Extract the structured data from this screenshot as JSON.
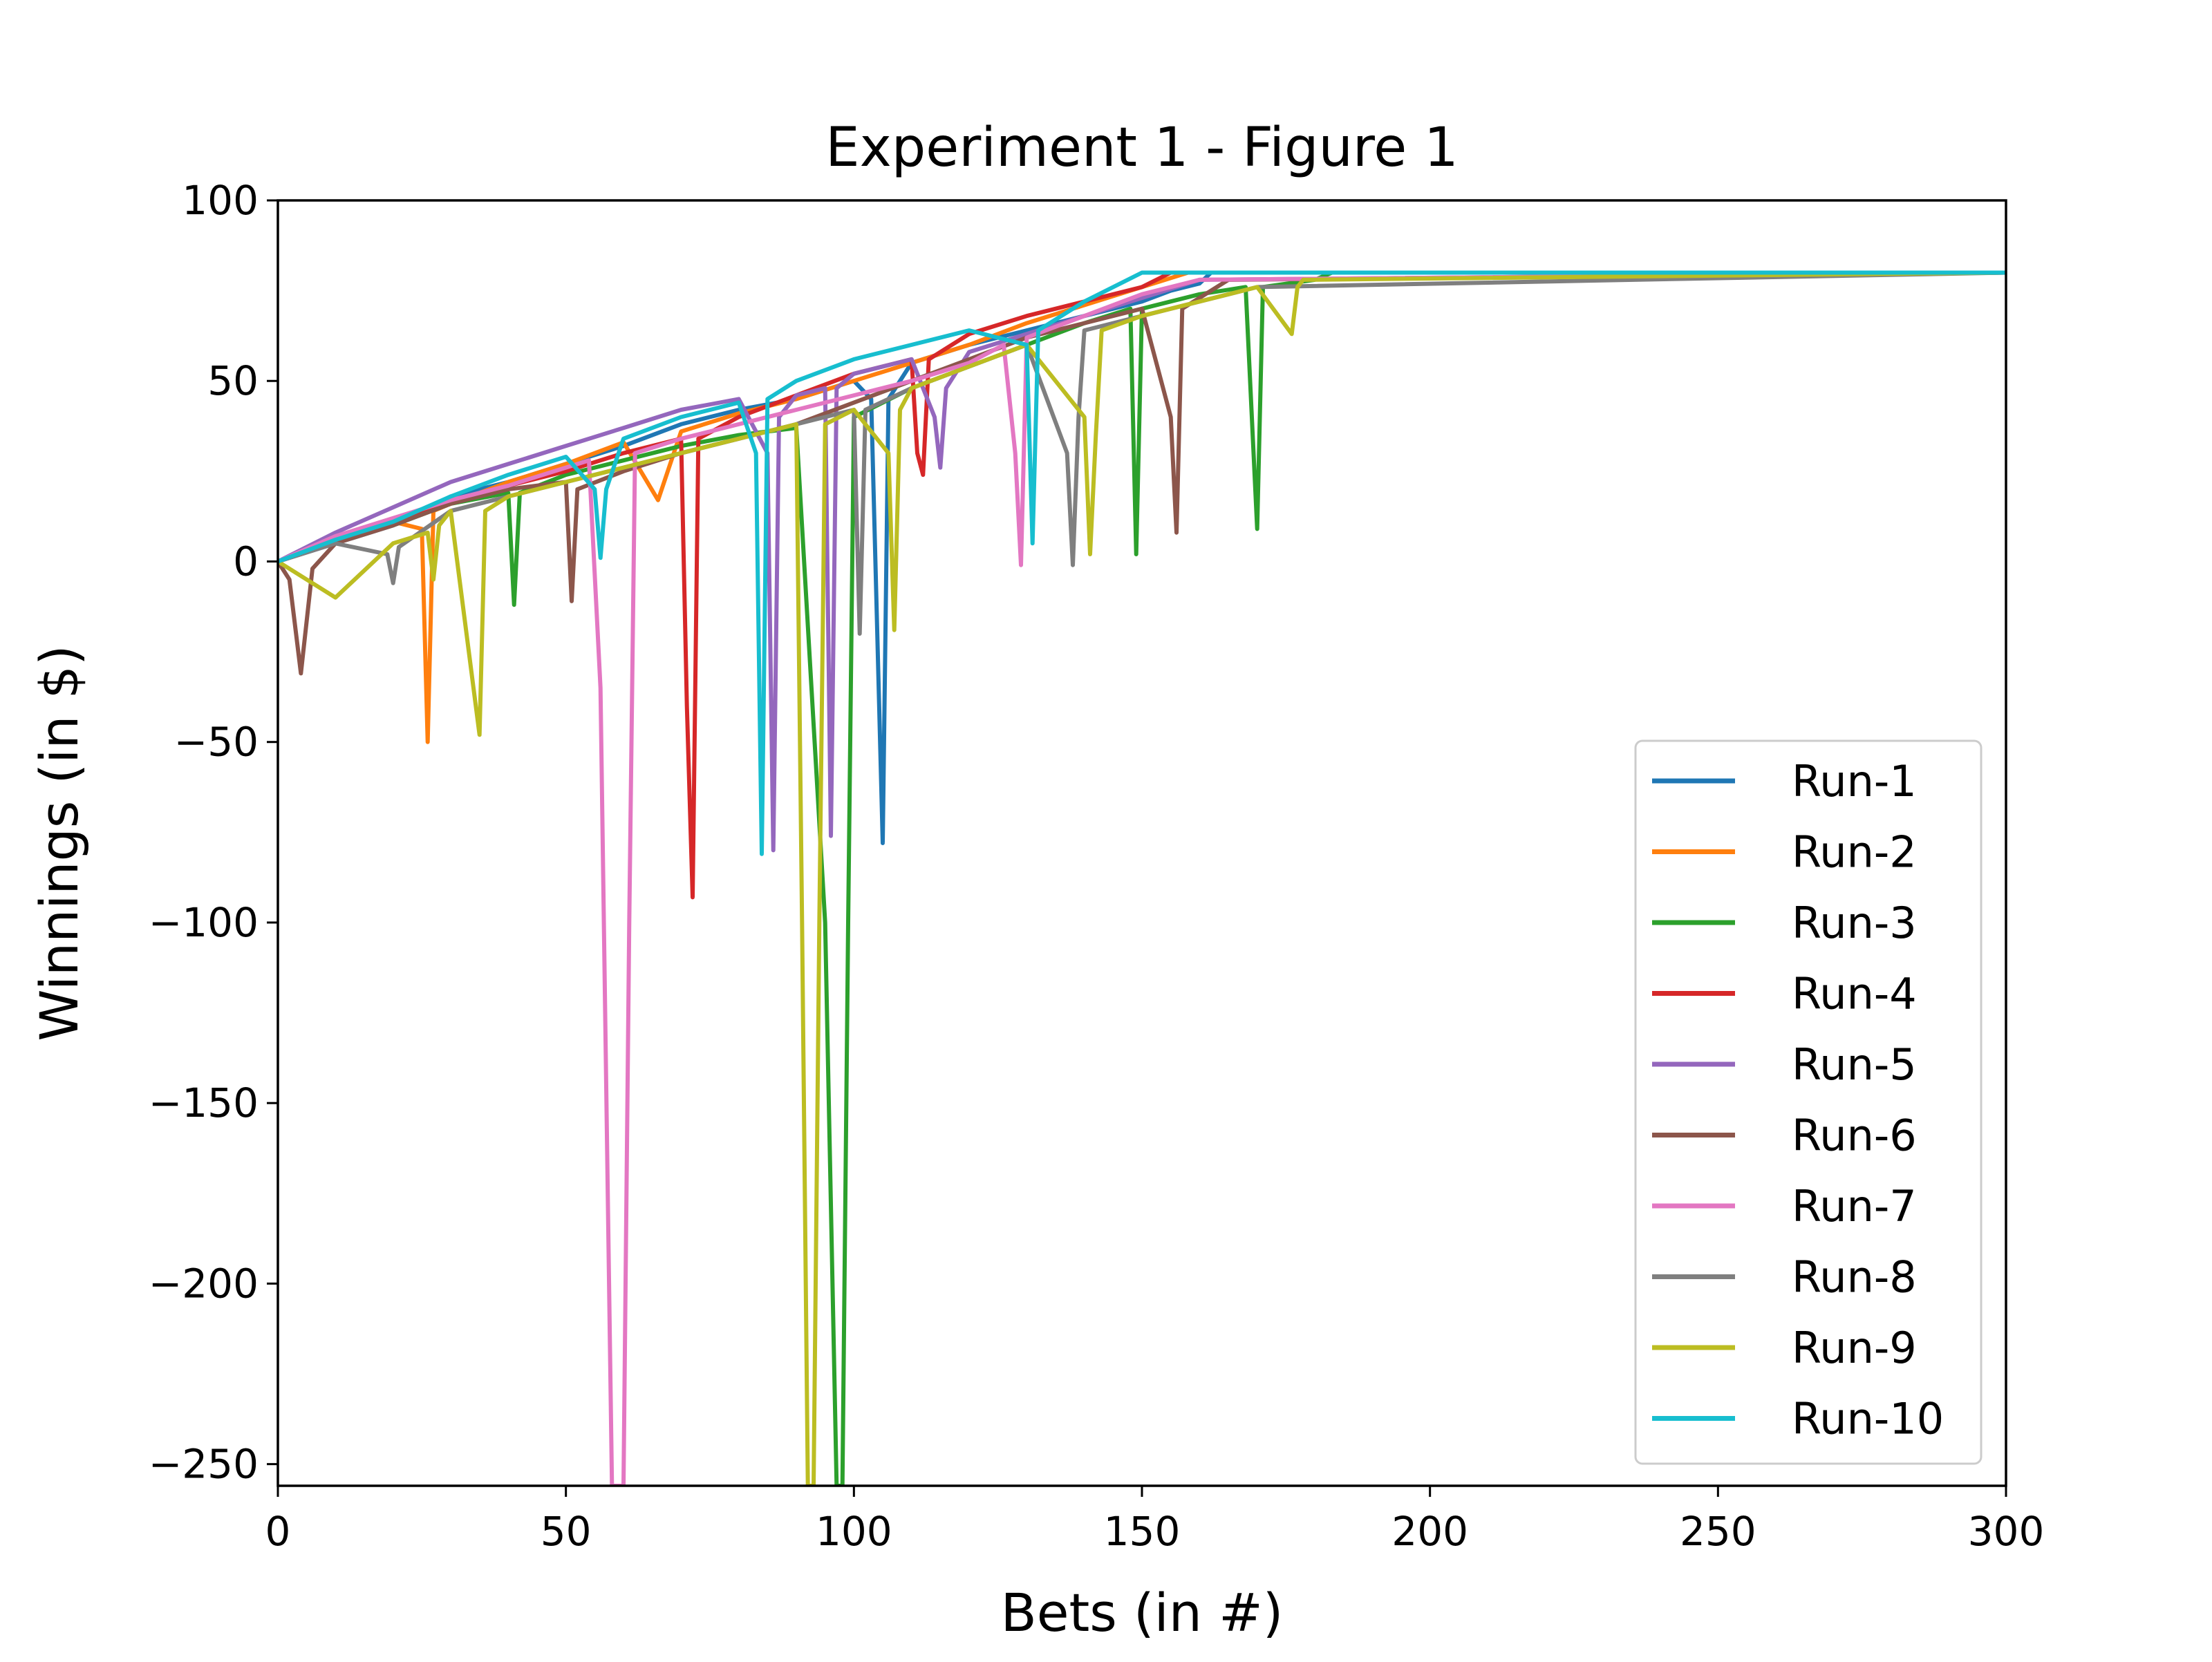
{
  "chart_data": {
    "type": "line",
    "title": "Experiment 1 - Figure 1",
    "xlabel": "Bets (in #)",
    "ylabel": "Winnings (in $)",
    "xlim": [
      0,
      300
    ],
    "ylim": [
      -256,
      100
    ],
    "xticks": [
      0,
      50,
      100,
      150,
      200,
      250,
      300
    ],
    "xtick_labels": [
      "0",
      "50",
      "100",
      "150",
      "200",
      "250",
      "300"
    ],
    "yticks": [
      100,
      50,
      0,
      -50,
      -100,
      -150,
      -200,
      -250
    ],
    "ytick_labels": [
      "100",
      "50",
      "0",
      "−50",
      "−100",
      "−150",
      "−200",
      "−250"
    ],
    "grid": false,
    "legend_position": "lower-right",
    "series": [
      {
        "name": "Run-1",
        "color": "#1f77b4",
        "x": [
          0,
          10,
          20,
          30,
          40,
          50,
          60,
          70,
          80,
          90,
          100,
          103,
          105,
          106,
          110,
          120,
          130,
          140,
          150,
          155,
          160,
          162,
          300
        ],
        "y": [
          0,
          5,
          10,
          18,
          22,
          27,
          32,
          38,
          42,
          45,
          50,
          45,
          -78,
          45,
          55,
          60,
          64,
          68,
          72,
          75,
          77,
          80,
          80
        ]
      },
      {
        "name": "Run-2",
        "color": "#ff7f0e",
        "x": [
          0,
          10,
          20,
          25,
          26,
          27,
          30,
          40,
          50,
          60,
          66,
          70,
          80,
          90,
          100,
          110,
          120,
          130,
          140,
          150,
          158,
          300
        ],
        "y": [
          0,
          6,
          11,
          9,
          -50,
          14,
          16,
          22,
          27,
          33,
          17,
          36,
          41,
          45,
          50,
          55,
          60,
          66,
          71,
          76,
          80,
          80
        ]
      },
      {
        "name": "Run-3",
        "color": "#2ca02c",
        "x": [
          0,
          10,
          20,
          30,
          40,
          41,
          42,
          50,
          60,
          70,
          80,
          90,
          95,
          97,
          98,
          99,
          100,
          110,
          120,
          130,
          140,
          148,
          149,
          150,
          160,
          168,
          170,
          171,
          180,
          183,
          300
        ],
        "y": [
          0,
          6,
          10,
          16,
          19,
          -12,
          19,
          24,
          28,
          32,
          35,
          37,
          -100,
          -256,
          -256,
          -100,
          40,
          48,
          54,
          60,
          66,
          70,
          2,
          70,
          74,
          76,
          9,
          76,
          78,
          80,
          80
        ]
      },
      {
        "name": "Run-4",
        "color": "#d62728",
        "x": [
          0,
          10,
          20,
          30,
          40,
          50,
          60,
          70,
          71,
          72,
          73,
          80,
          90,
          100,
          110,
          111,
          112,
          113,
          120,
          130,
          140,
          150,
          155,
          300
        ],
        "y": [
          0,
          6,
          11,
          16,
          21,
          25,
          30,
          34,
          -40,
          -93,
          34,
          40,
          46,
          52,
          56,
          30,
          24,
          56,
          63,
          68,
          72,
          76,
          80,
          80
        ]
      },
      {
        "name": "Run-5",
        "color": "#9467bd",
        "x": [
          0,
          10,
          20,
          30,
          40,
          50,
          60,
          70,
          80,
          85,
          86,
          87,
          90,
          95,
          96,
          97,
          100,
          110,
          114,
          115,
          116,
          120,
          130,
          140,
          150,
          160,
          300
        ],
        "y": [
          0,
          8,
          15,
          22,
          27,
          32,
          37,
          42,
          45,
          30,
          -80,
          40,
          46,
          48,
          -76,
          48,
          52,
          56,
          40,
          26,
          48,
          58,
          63,
          68,
          73,
          78,
          80
        ]
      },
      {
        "name": "Run-6",
        "color": "#8c564b",
        "x": [
          0,
          2,
          4,
          6,
          10,
          20,
          30,
          40,
          50,
          51,
          52,
          60,
          70,
          80,
          90,
          100,
          110,
          120,
          130,
          140,
          150,
          155,
          156,
          157,
          165,
          300
        ],
        "y": [
          0,
          -5,
          -31,
          -2,
          5,
          10,
          16,
          20,
          22,
          -11,
          20,
          25,
          30,
          34,
          38,
          44,
          50,
          56,
          62,
          66,
          70,
          40,
          8,
          70,
          78,
          80
        ]
      },
      {
        "name": "Run-7",
        "color": "#e377c2",
        "x": [
          0,
          10,
          20,
          30,
          40,
          50,
          54,
          56,
          58,
          59,
          60,
          61,
          62,
          70,
          80,
          90,
          100,
          110,
          120,
          126,
          128,
          129,
          130,
          140,
          150,
          160,
          300
        ],
        "y": [
          0,
          7,
          12,
          17,
          21,
          26,
          28,
          -35,
          -256,
          -256,
          -256,
          -100,
          30,
          34,
          38,
          42,
          46,
          50,
          55,
          60,
          30,
          -1,
          62,
          68,
          74,
          78,
          80
        ]
      },
      {
        "name": "Run-8",
        "color": "#7f7f7f",
        "x": [
          0,
          10,
          19,
          20,
          21,
          30,
          40,
          50,
          60,
          70,
          80,
          90,
          100,
          101,
          102,
          110,
          120,
          130,
          137,
          138,
          139,
          140,
          150,
          160,
          170,
          300
        ],
        "y": [
          0,
          5,
          2,
          -6,
          4,
          14,
          18,
          22,
          26,
          30,
          34,
          38,
          42,
          -20,
          42,
          48,
          54,
          60,
          30,
          -1,
          40,
          64,
          68,
          72,
          76,
          80
        ]
      },
      {
        "name": "Run-9",
        "color": "#bcbd22",
        "x": [
          0,
          10,
          20,
          26,
          27,
          28,
          30,
          35,
          36,
          40,
          50,
          60,
          70,
          80,
          90,
          91,
          92,
          93,
          94,
          95,
          100,
          106,
          107,
          108,
          110,
          120,
          130,
          140,
          141,
          142,
          143,
          150,
          160,
          170,
          176,
          177,
          178,
          300
        ],
        "y": [
          0,
          -10,
          5,
          8,
          -5,
          10,
          14,
          -48,
          14,
          18,
          22,
          26,
          30,
          34,
          38,
          -100,
          -256,
          -256,
          -100,
          38,
          42,
          30,
          -19,
          42,
          48,
          54,
          60,
          40,
          2,
          35,
          64,
          68,
          72,
          76,
          63,
          76,
          78,
          80
        ]
      },
      {
        "name": "Run-10",
        "color": "#17becf",
        "x": [
          0,
          10,
          20,
          30,
          40,
          50,
          55,
          56,
          57,
          60,
          70,
          80,
          83,
          84,
          85,
          90,
          100,
          110,
          120,
          130,
          131,
          132,
          140,
          150,
          300
        ],
        "y": [
          0,
          6,
          11,
          18,
          24,
          29,
          20,
          1,
          20,
          34,
          40,
          44,
          30,
          -81,
          45,
          50,
          56,
          60,
          64,
          60,
          5,
          64,
          72,
          80,
          80
        ]
      }
    ]
  }
}
